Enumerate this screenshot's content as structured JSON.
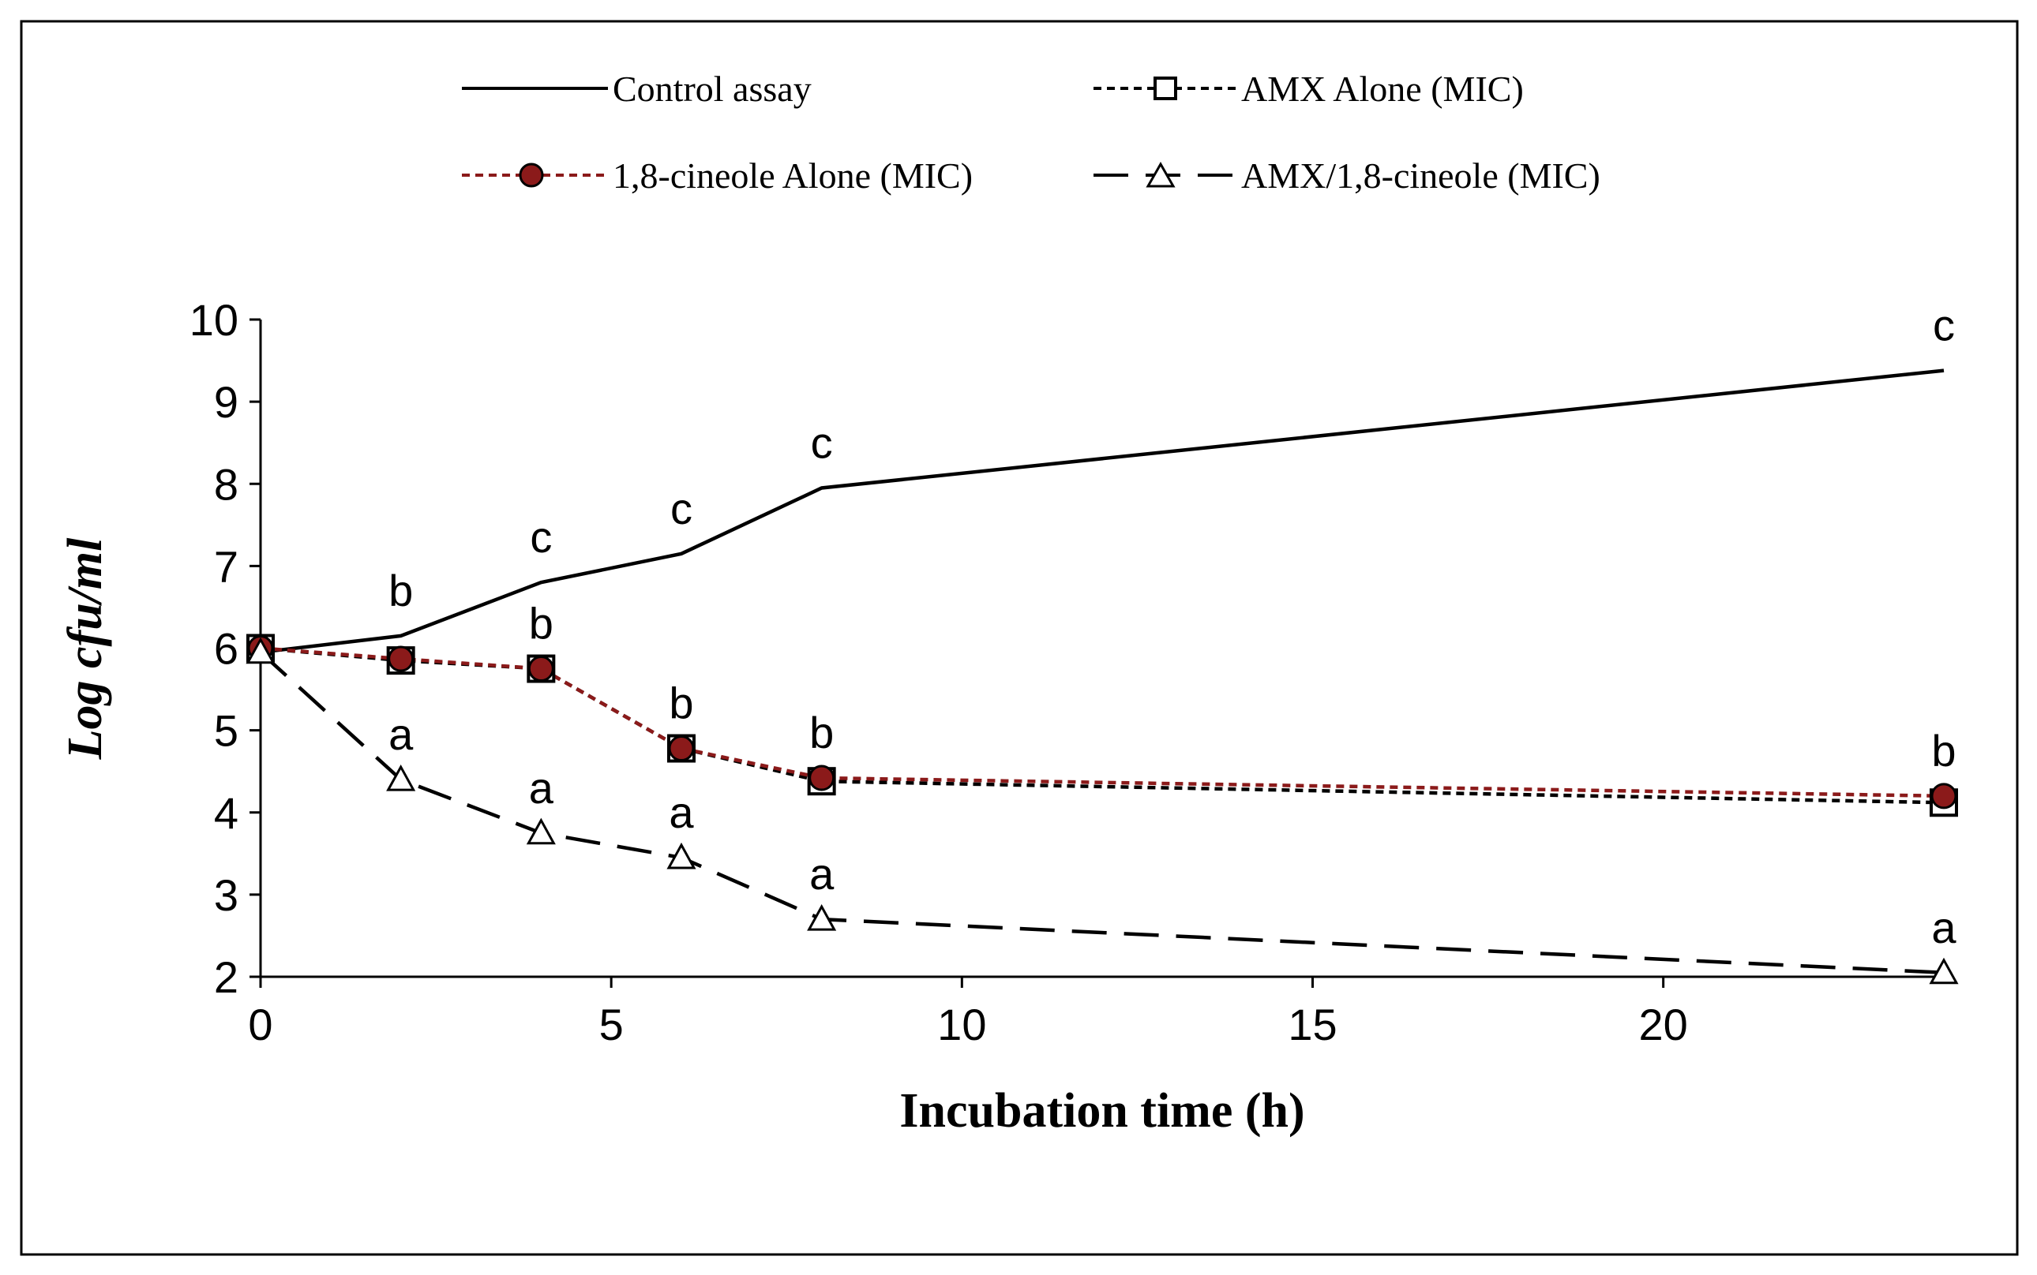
{
  "chart_data": {
    "type": "line",
    "title": "",
    "xlabel": "Incubation time (h)",
    "ylabel": "Log cfu/ml",
    "xlim": [
      0,
      24
    ],
    "ylim": [
      2,
      10
    ],
    "xticks": [
      0,
      5,
      10,
      15,
      20
    ],
    "xtick_labels": [
      "0",
      "5",
      "10",
      "15",
      "20"
    ],
    "yticks": [
      2,
      3,
      4,
      5,
      6,
      7,
      8,
      9,
      10
    ],
    "ytick_labels": [
      "2",
      "3",
      "4",
      "5",
      "6",
      "7",
      "8",
      "9",
      "10"
    ],
    "grid": false,
    "legend_position": "top",
    "x": [
      0,
      2,
      4,
      6,
      8,
      24
    ],
    "series": [
      {
        "name": "Control assay",
        "values": [
          5.95,
          6.15,
          6.8,
          7.15,
          7.95,
          9.38
        ],
        "color": "#000000",
        "line": "solid",
        "marker": "none",
        "annotations": [
          "",
          "b",
          "c",
          "c",
          "c",
          "c"
        ]
      },
      {
        "name": "AMX Alone (MIC)",
        "values": [
          6.0,
          5.85,
          5.75,
          4.78,
          4.38,
          4.12
        ],
        "color": "#000000",
        "line": "dotted",
        "marker": "square",
        "annotations": []
      },
      {
        "name": "1,8-cineole Alone (MIC)",
        "values": [
          6.0,
          5.87,
          5.75,
          4.78,
          4.42,
          4.2
        ],
        "color": "#8b1a1a",
        "line": "dotted",
        "marker": "circle",
        "annotations": [
          "",
          "",
          "b",
          "b",
          "b",
          "b"
        ]
      },
      {
        "name": "AMX/1,8-cineole (MIC)",
        "values": [
          5.95,
          4.4,
          3.75,
          3.45,
          2.7,
          2.05
        ],
        "color": "#000000",
        "line": "dashed",
        "marker": "triangle",
        "annotations": [
          "",
          "a",
          "a",
          "a",
          "a",
          "a"
        ]
      }
    ]
  }
}
